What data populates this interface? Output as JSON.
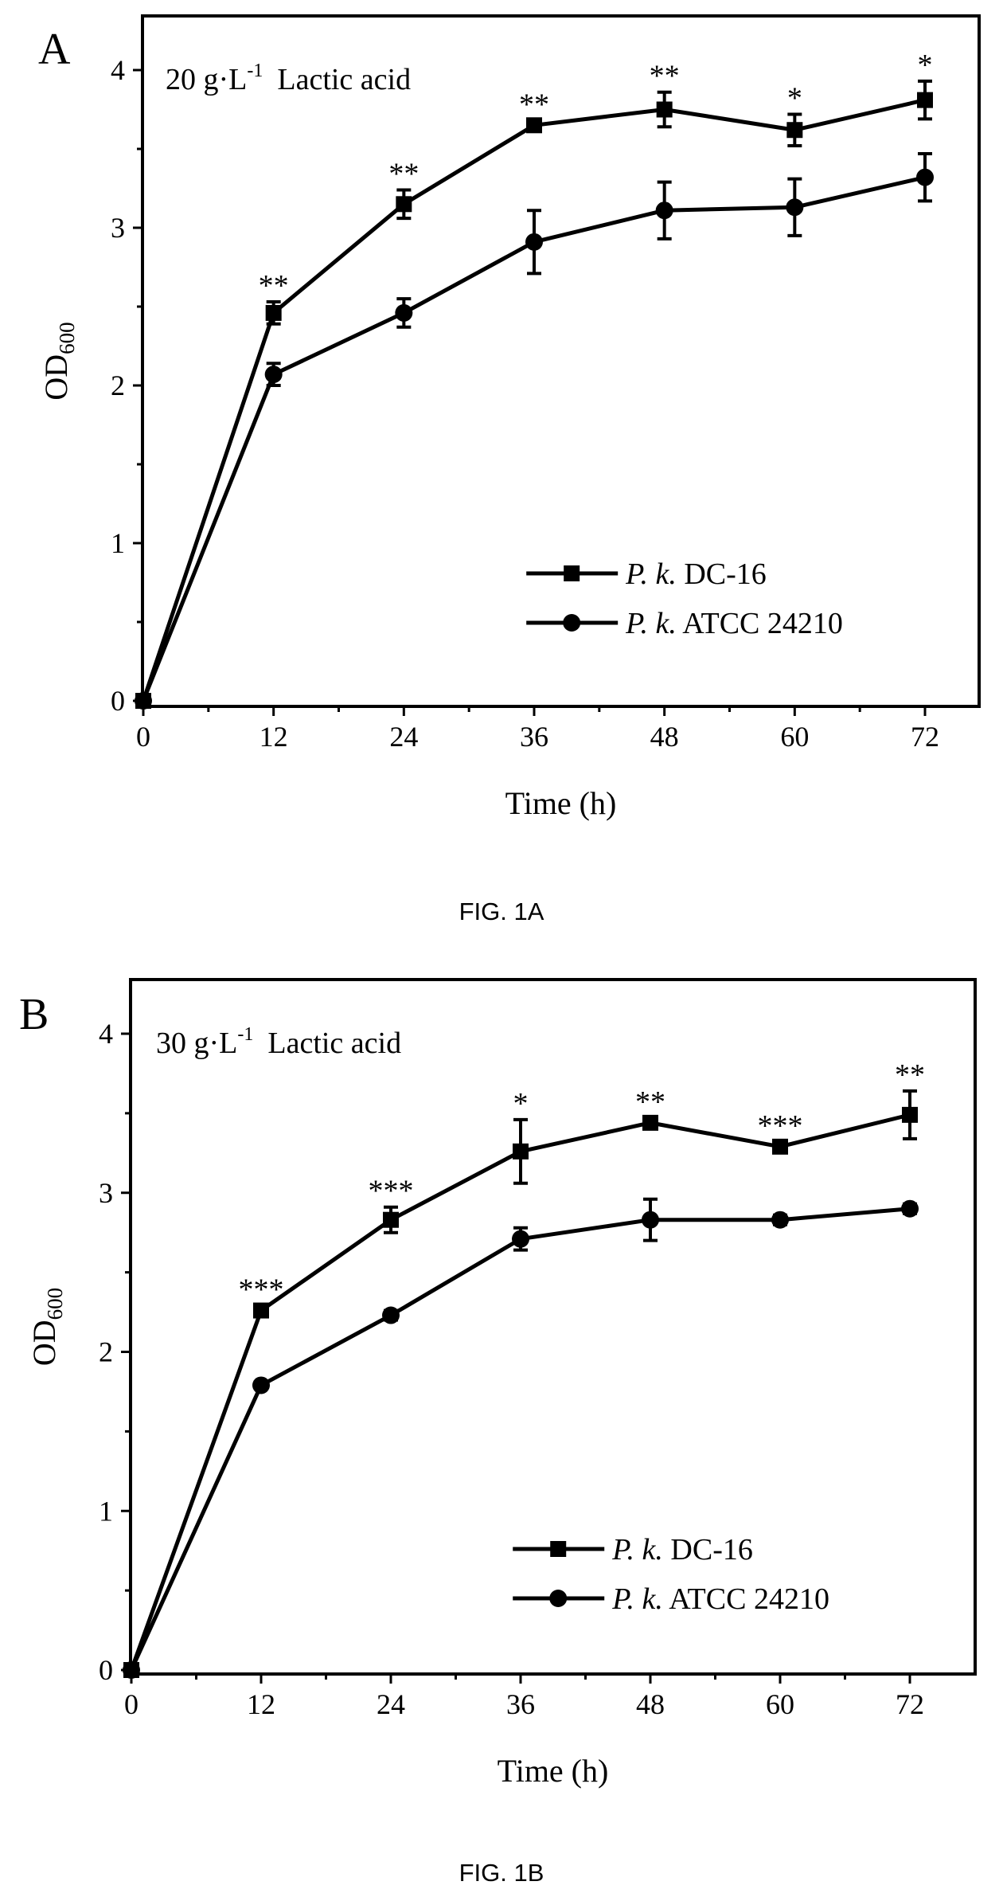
{
  "chart_data": [
    {
      "type": "line",
      "panel_letter": "A",
      "annotation": {
        "prefix": "20 g·L",
        "exp": "-1",
        "suffix": "Lactic acid"
      },
      "ylabel": {
        "main": "OD",
        "sub": "600"
      },
      "xlabel": "Time  (h)",
      "caption": "FIG. 1A",
      "xlim": [
        0,
        72
      ],
      "ylim": [
        0,
        4
      ],
      "x": [
        0,
        12,
        24,
        36,
        48,
        60,
        72
      ],
      "xticks": [
        "0",
        "12",
        "24",
        "36",
        "48",
        "60",
        "72"
      ],
      "yticks": [
        "0",
        "1",
        "2",
        "3",
        "4"
      ],
      "grid": false,
      "legend_position": "bottom-right",
      "series": [
        {
          "name": {
            "italic": "P. k.",
            "rest": " DC-16"
          },
          "marker": "square",
          "values": [
            0,
            2.46,
            3.15,
            3.65,
            3.75,
            3.62,
            3.81
          ],
          "errors": [
            0,
            0.07,
            0.09,
            0.03,
            0.11,
            0.1,
            0.12
          ]
        },
        {
          "name": {
            "italic": "P. k.",
            "rest": " ATCC 24210"
          },
          "marker": "circle",
          "values": [
            0,
            2.07,
            2.46,
            2.91,
            3.11,
            3.13,
            3.32
          ],
          "errors": [
            0,
            0.07,
            0.09,
            0.2,
            0.18,
            0.18,
            0.15
          ]
        }
      ],
      "significance": [
        "",
        "**",
        "**",
        "**",
        "**",
        "*",
        "*"
      ]
    },
    {
      "type": "line",
      "panel_letter": "B",
      "annotation": {
        "prefix": "30 g·L",
        "exp": "-1",
        "suffix": "Lactic acid"
      },
      "ylabel": {
        "main": "OD",
        "sub": "600"
      },
      "xlabel": "Time  (h)",
      "caption": "FIG. 1B",
      "xlim": [
        0,
        72
      ],
      "ylim": [
        0,
        4
      ],
      "x": [
        0,
        12,
        24,
        36,
        48,
        60,
        72
      ],
      "xticks": [
        "0",
        "12",
        "24",
        "36",
        "48",
        "60",
        "72"
      ],
      "yticks": [
        "0",
        "1",
        "2",
        "3",
        "4"
      ],
      "grid": false,
      "legend_position": "bottom-right",
      "series": [
        {
          "name": {
            "italic": "P. k.",
            "rest": " DC-16"
          },
          "marker": "square",
          "values": [
            0,
            2.26,
            2.83,
            3.26,
            3.44,
            3.29,
            3.49
          ],
          "errors": [
            0,
            0.03,
            0.08,
            0.2,
            0.03,
            0.03,
            0.15
          ]
        },
        {
          "name": {
            "italic": "P. k.",
            "rest": " ATCC 24210"
          },
          "marker": "circle",
          "values": [
            0,
            1.79,
            2.23,
            2.71,
            2.83,
            2.83,
            2.9
          ],
          "errors": [
            0,
            0.02,
            0.03,
            0.07,
            0.13,
            0.03,
            0.03
          ]
        }
      ],
      "significance": [
        "",
        "***",
        "***",
        "*",
        "**",
        "***",
        "**"
      ]
    }
  ]
}
